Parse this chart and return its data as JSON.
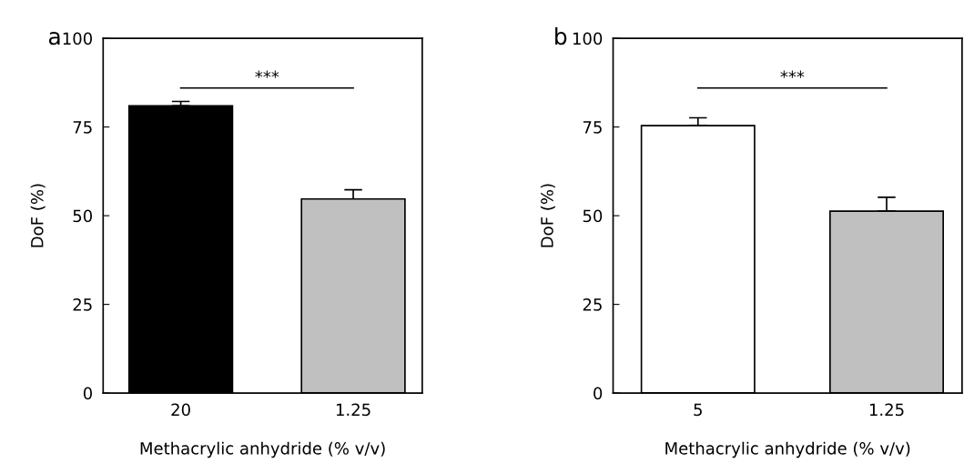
{
  "chart_data": [
    {
      "type": "bar",
      "xlabel": "Methacrylic anhydride (% v/v)",
      "ylabel": "DoF (%)",
      "categories": [
        "20",
        "1.25"
      ],
      "values": [
        81,
        54.7
      ],
      "colors": [
        "#000000",
        "#c0c0c0"
      ],
      "errors": [
        [
          81,
          82.2
        ],
        [
          54.7,
          57.3
        ]
      ],
      "ylim": [
        0,
        100
      ],
      "yticks": [
        0,
        25,
        50,
        75,
        100
      ],
      "grid": false,
      "legend": false,
      "annotations": [
        "a",
        "***"
      ]
    },
    {
      "type": "bar",
      "xlabel": "Methacrylic anhydride (% v/v)",
      "ylabel": "DoF (%)",
      "categories": [
        "5",
        "1.25"
      ],
      "values": [
        75.4,
        51.3
      ],
      "colors": [
        "#ffffff",
        "#c0c0c0"
      ],
      "errors": [
        [
          75.4,
          77.6
        ],
        [
          51.3,
          55.2
        ]
      ],
      "ylim": [
        0,
        100
      ],
      "yticks": [
        0,
        25,
        50,
        75,
        100
      ],
      "grid": false,
      "legend": false,
      "annotations": [
        "b",
        "***"
      ]
    }
  ]
}
